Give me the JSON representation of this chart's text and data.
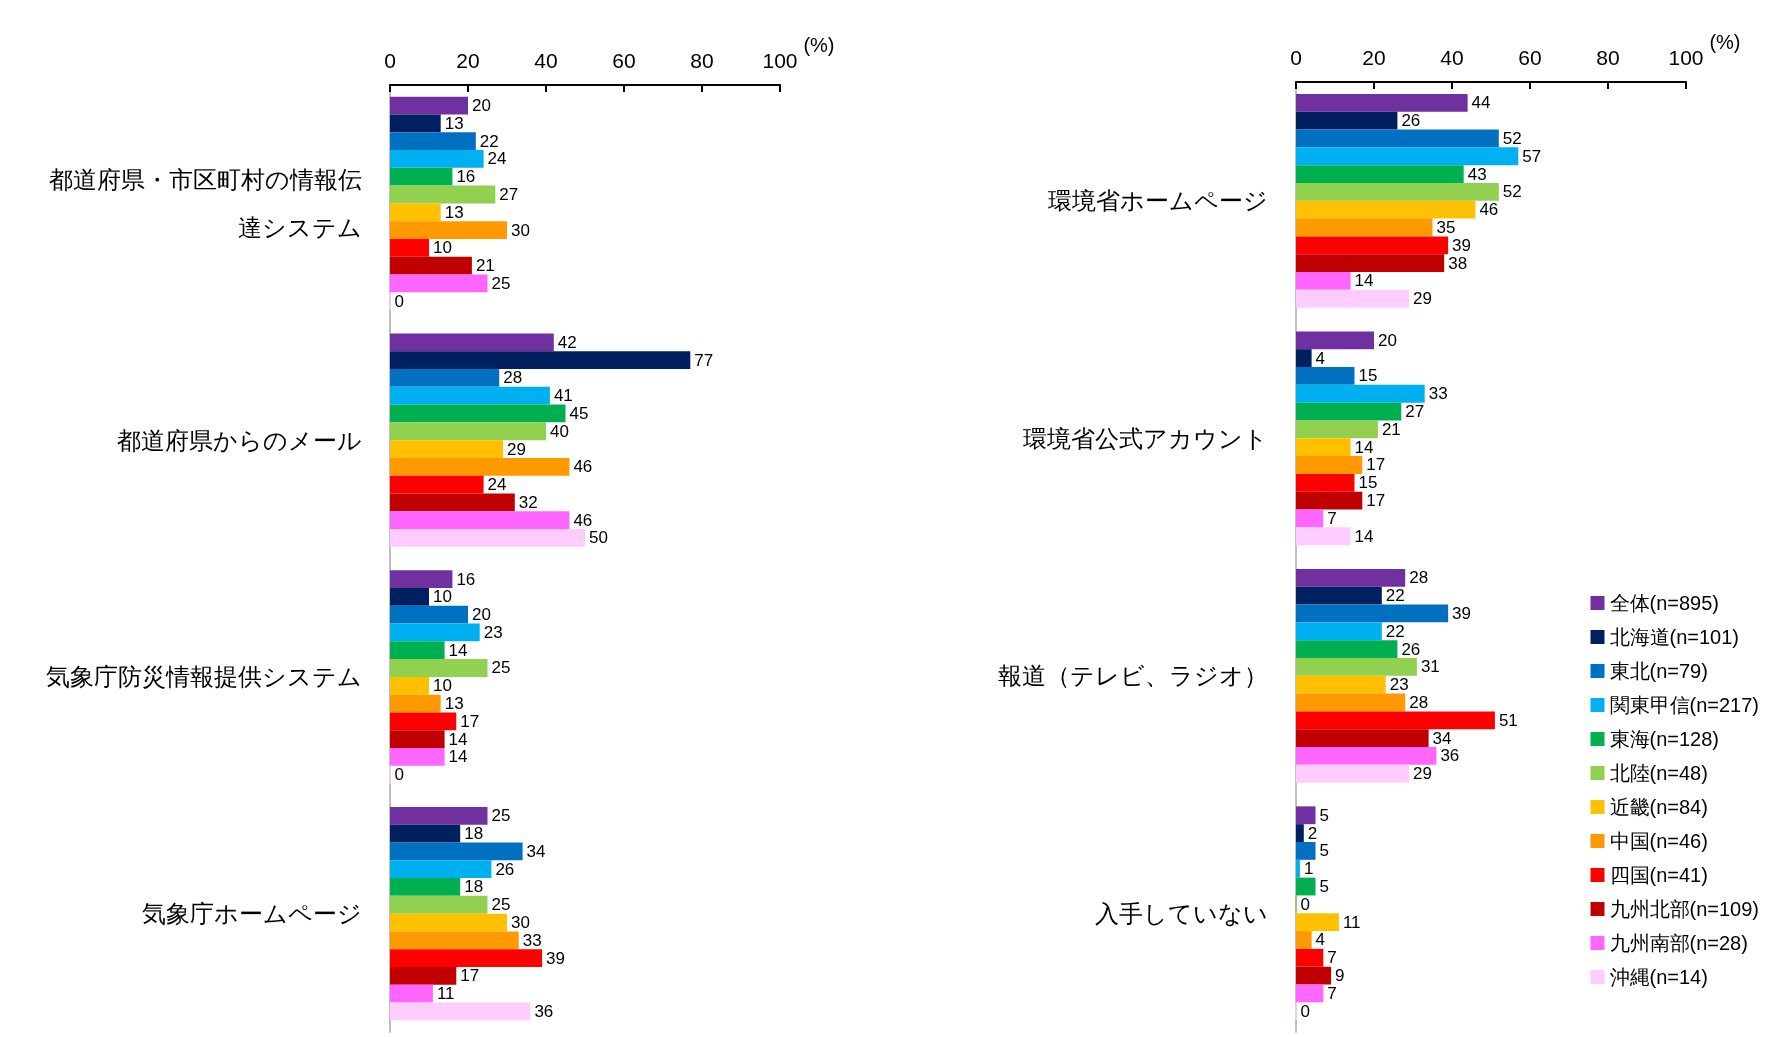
{
  "chart_data": [
    {
      "type": "bar",
      "orientation": "horizontal",
      "xlabel": "(%)",
      "xlim": [
        0,
        100
      ],
      "xticks": [
        0,
        20,
        40,
        60,
        80,
        100
      ],
      "grid": false,
      "legend": false,
      "data_labels": true,
      "categories": [
        "都道府県・市区町村の情報伝達システム",
        "都道府県からのメール",
        "気象庁防災情報提供システム",
        "気象庁ホームページ"
      ],
      "series": [
        {
          "color": "#7030a0",
          "values": [
            20,
            42,
            16,
            25
          ]
        },
        {
          "color": "#002060",
          "values": [
            13,
            77,
            10,
            18
          ]
        },
        {
          "color": "#0070c0",
          "values": [
            22,
            28,
            20,
            34
          ]
        },
        {
          "color": "#00b0f0",
          "values": [
            24,
            41,
            23,
            26
          ]
        },
        {
          "color": "#00b050",
          "values": [
            16,
            45,
            14,
            18
          ]
        },
        {
          "color": "#92d050",
          "values": [
            27,
            40,
            25,
            25
          ]
        },
        {
          "color": "#ffc000",
          "values": [
            13,
            29,
            10,
            30
          ]
        },
        {
          "color": "#ff9900",
          "values": [
            30,
            46,
            13,
            33
          ]
        },
        {
          "color": "#ff0000",
          "values": [
            10,
            24,
            17,
            39
          ]
        },
        {
          "color": "#c00000",
          "values": [
            21,
            32,
            14,
            17
          ]
        },
        {
          "color": "#ff66ff",
          "values": [
            25,
            46,
            14,
            11
          ]
        },
        {
          "color": "#ffccff",
          "values": [
            0,
            50,
            0,
            36
          ]
        }
      ]
    },
    {
      "type": "bar",
      "orientation": "horizontal",
      "xlabel": "(%)",
      "xlim": [
        0,
        100
      ],
      "xticks": [
        0,
        20,
        40,
        60,
        80,
        100
      ],
      "grid": false,
      "legend": "bottom right",
      "data_labels": true,
      "categories": [
        "環境省ホームページ",
        "環境省公式アカウント",
        "報道（テレビ、ラジオ）",
        "入手していない"
      ],
      "series": [
        {
          "name": "全体(n=895)",
          "color": "#7030a0",
          "values": [
            44,
            20,
            28,
            5
          ]
        },
        {
          "name": "北海道(n=101)",
          "color": "#002060",
          "values": [
            26,
            4,
            22,
            2
          ]
        },
        {
          "name": "東北(n=79)",
          "color": "#0070c0",
          "values": [
            52,
            15,
            39,
            5
          ]
        },
        {
          "name": "関東甲信(n=217)",
          "color": "#00b0f0",
          "values": [
            57,
            33,
            22,
            1
          ]
        },
        {
          "name": "東海(n=128)",
          "color": "#00b050",
          "values": [
            43,
            27,
            26,
            5
          ]
        },
        {
          "name": "北陸(n=48)",
          "color": "#92d050",
          "values": [
            52,
            21,
            31,
            0
          ]
        },
        {
          "name": "近畿(n=84)",
          "color": "#ffc000",
          "values": [
            46,
            14,
            23,
            11
          ]
        },
        {
          "name": "中国(n=46)",
          "color": "#ff9900",
          "values": [
            35,
            17,
            28,
            4
          ]
        },
        {
          "name": "四国(n=41)",
          "color": "#ff0000",
          "values": [
            39,
            15,
            51,
            7
          ]
        },
        {
          "name": "九州北部(n=109)",
          "color": "#c00000",
          "values": [
            38,
            17,
            34,
            9
          ]
        },
        {
          "name": "九州南部(n=28)",
          "color": "#ff66ff",
          "values": [
            14,
            7,
            36,
            7
          ]
        },
        {
          "name": "沖縄(n=14)",
          "color": "#ffccff",
          "values": [
            29,
            14,
            29,
            0
          ]
        }
      ]
    }
  ]
}
